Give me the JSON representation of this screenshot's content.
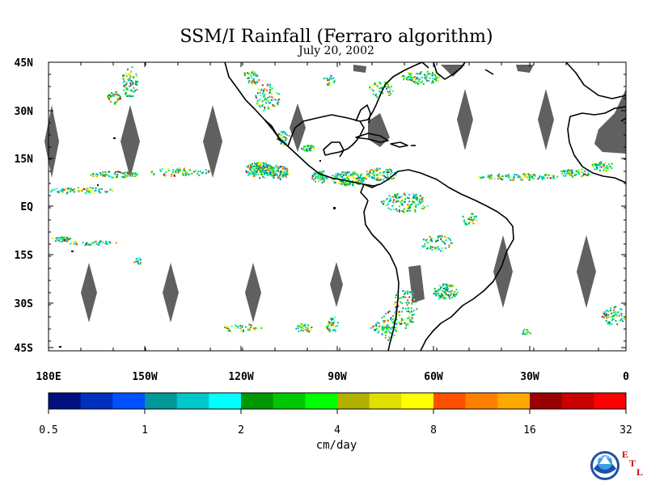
{
  "title": "SSM/I Rainfall (Ferraro algorithm)",
  "subtitle": "July 20, 2002",
  "lat_ticks": [
    "45N",
    "30N",
    "15N",
    "EQ",
    "15S",
    "30S",
    "45S"
  ],
  "lon_ticks": [
    "180E",
    "150W",
    "120W",
    "90W",
    "60W",
    "30W",
    "0"
  ],
  "colorbar": {
    "unit": "cm/day",
    "labels": [
      "0.5",
      "1",
      "2",
      "4",
      "8",
      "16",
      "32"
    ],
    "colors": [
      "#00107e",
      "#0030c0",
      "#0050ff",
      "#009898",
      "#00c8c8",
      "#00ffff",
      "#009800",
      "#00c800",
      "#00ff00",
      "#b0b000",
      "#e0e000",
      "#ffff00",
      "#ff5000",
      "#ff8000",
      "#ffa800",
      "#980000",
      "#c80000",
      "#ff0000"
    ]
  },
  "logo": {
    "noaa": "NOAA",
    "etl": [
      "E",
      "T",
      "L"
    ]
  },
  "colors": {
    "no_data": "#606060",
    "coast": "#000000"
  }
}
